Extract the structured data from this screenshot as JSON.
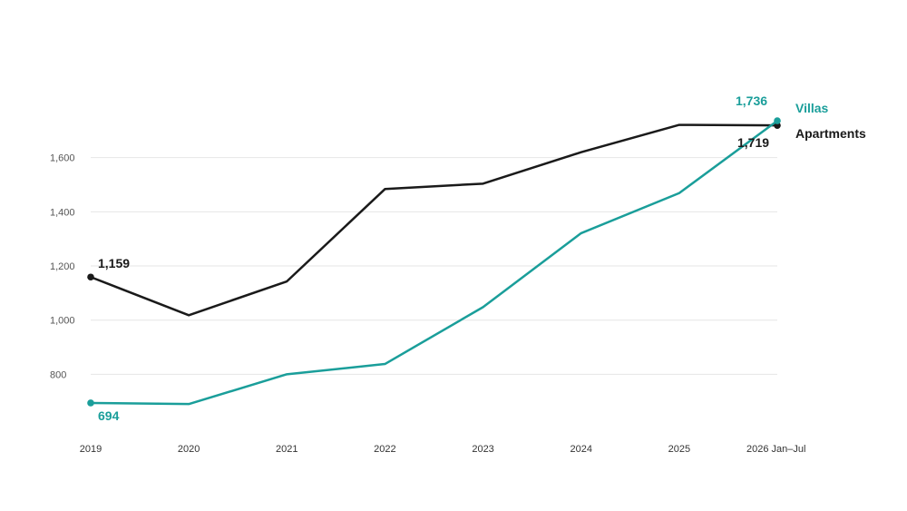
{
  "chart_data": {
    "type": "line",
    "title": "",
    "xlabel": "",
    "ylabel": "",
    "categories": [
      "2019",
      "2020",
      "2021",
      "2022",
      "2023",
      "2024",
      "2025",
      "2026 Jan–Jul"
    ],
    "series": [
      {
        "name": "Apartments",
        "color": "#1a1a1a",
        "values": [
          1159,
          1018,
          1143,
          1484,
          1504,
          1620,
          1721,
          1719
        ],
        "start_label": "1,159",
        "end_label": "1,719"
      },
      {
        "name": "Villas",
        "color": "#1a9e9a",
        "values": [
          694,
          690,
          800,
          838,
          1048,
          1321,
          1469,
          1736
        ],
        "start_label": "694",
        "end_label": "1,736"
      }
    ],
    "y_ticks": [
      {
        "value": 800,
        "label": "800"
      },
      {
        "value": 1000,
        "label": "1,000"
      },
      {
        "value": 1200,
        "label": "1,200"
      },
      {
        "value": 1400,
        "label": "1,400"
      },
      {
        "value": 1600,
        "label": "1,600"
      }
    ],
    "ylim": [
      580,
      1800
    ],
    "grid": true,
    "legend": "end-of-line labels"
  }
}
